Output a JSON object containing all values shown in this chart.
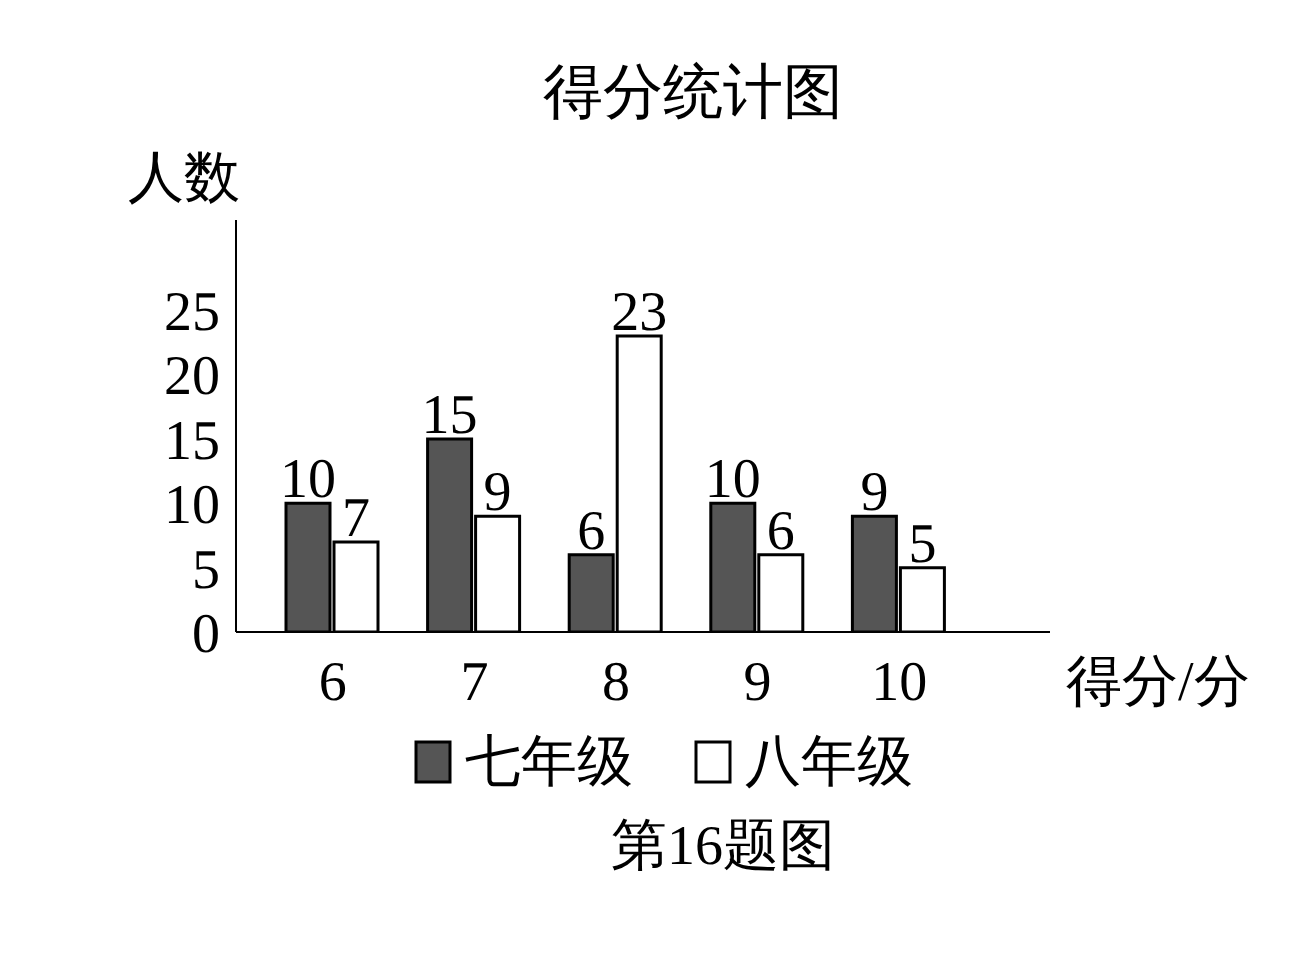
{
  "chart_data": {
    "type": "bar",
    "title": "得分统计图",
    "ylabel": "人数",
    "xlabel": "得分/分",
    "categories": [
      "6",
      "7",
      "8",
      "9",
      "10"
    ],
    "series": [
      {
        "name": "七年级",
        "color": "#555555",
        "values": [
          10,
          15,
          6,
          10,
          9
        ]
      },
      {
        "name": "八年级",
        "color": "#ffffff",
        "values": [
          7,
          9,
          23,
          6,
          5
        ]
      }
    ],
    "ylim": [
      0,
      32
    ],
    "yticks": [
      0,
      5,
      10,
      15,
      20,
      25
    ],
    "grid": false,
    "legend": "bottom",
    "data_labels": true,
    "annotations": [
      "第16题图"
    ]
  }
}
